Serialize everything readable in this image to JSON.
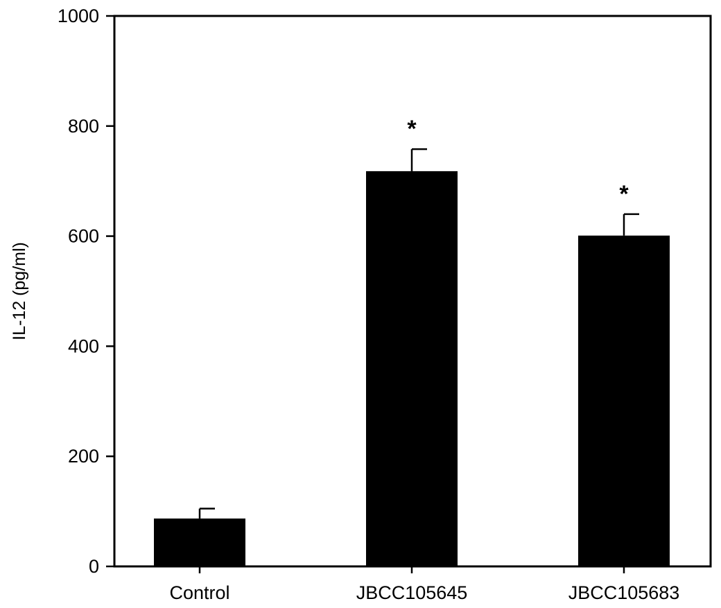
{
  "chart_data": {
    "type": "bar",
    "categories": [
      "Control",
      "JBCC105645",
      "JBCC105683"
    ],
    "values": [
      87,
      718,
      601
    ],
    "errors": [
      18,
      40,
      39
    ],
    "significance": [
      "",
      "*",
      "*"
    ],
    "title": "",
    "xlabel": "",
    "ylabel": "IL-12 (pg/ml)",
    "ylim": [
      0,
      1000
    ],
    "yticks": [
      "0",
      "200",
      "400",
      "600",
      "800",
      "1000"
    ],
    "grid": false,
    "bar_color": "#000000"
  }
}
